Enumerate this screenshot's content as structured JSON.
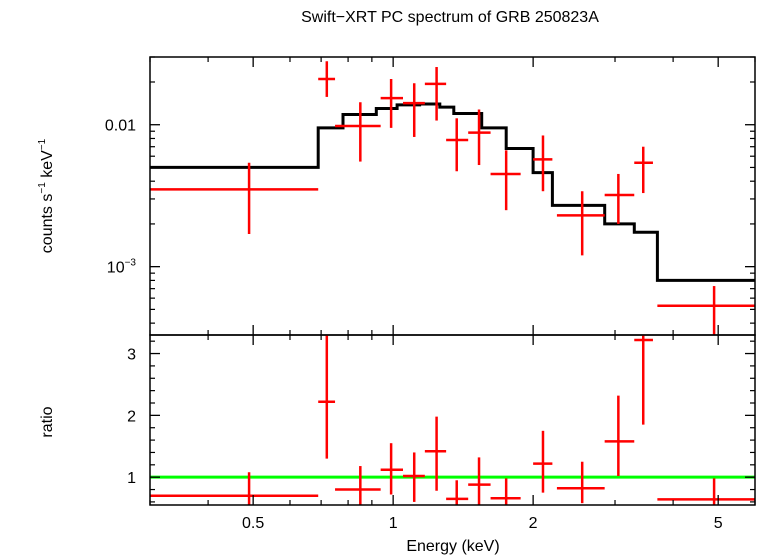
{
  "chart_data": [
    {
      "type": "scatter",
      "title": "Swift−XRT PC spectrum of GRB 250823A",
      "ylabel_main": "counts s",
      "ylabel_exp1": "−1",
      "ylabel_mid": " keV",
      "ylabel_exp2": "−1",
      "xscale": "log",
      "yscale": "log",
      "xlim": [
        0.3,
        6.0
      ],
      "ylim": [
        0.00033,
        0.03
      ],
      "yticks": [
        {
          "base": "0.01",
          "exp": ""
        },
        {
          "base": "10",
          "exp": "−3"
        }
      ],
      "data_points": [
        {
          "x": 0.49,
          "xlo": 0.3,
          "xhi": 0.69,
          "y": 0.0035,
          "ylo": 0.0017,
          "yhi": 0.0054
        },
        {
          "x": 0.72,
          "xlo": 0.69,
          "xhi": 0.75,
          "y": 0.021,
          "ylo": 0.0157,
          "yhi": 0.028
        },
        {
          "x": 0.85,
          "xlo": 0.75,
          "xhi": 0.94,
          "y": 0.0098,
          "ylo": 0.0055,
          "yhi": 0.0144
        },
        {
          "x": 0.99,
          "xlo": 0.94,
          "xhi": 1.05,
          "y": 0.0154,
          "ylo": 0.0095,
          "yhi": 0.021
        },
        {
          "x": 1.11,
          "xlo": 1.05,
          "xhi": 1.17,
          "y": 0.0142,
          "ylo": 0.0082,
          "yhi": 0.0196
        },
        {
          "x": 1.24,
          "xlo": 1.17,
          "xhi": 1.3,
          "y": 0.0194,
          "ylo": 0.0107,
          "yhi": 0.0255
        },
        {
          "x": 1.37,
          "xlo": 1.3,
          "xhi": 1.45,
          "y": 0.0078,
          "ylo": 0.0047,
          "yhi": 0.0111
        },
        {
          "x": 1.53,
          "xlo": 1.45,
          "xhi": 1.62,
          "y": 0.0088,
          "ylo": 0.0052,
          "yhi": 0.0128
        },
        {
          "x": 1.75,
          "xlo": 1.62,
          "xhi": 1.88,
          "y": 0.0045,
          "ylo": 0.0025,
          "yhi": 0.0066
        },
        {
          "x": 2.1,
          "xlo": 2.0,
          "xhi": 2.2,
          "y": 0.0057,
          "ylo": 0.0034,
          "yhi": 0.0084
        },
        {
          "x": 2.55,
          "xlo": 2.25,
          "xhi": 2.85,
          "y": 0.0023,
          "ylo": 0.0012,
          "yhi": 0.0034
        },
        {
          "x": 3.05,
          "xlo": 2.85,
          "xhi": 3.3,
          "y": 0.0032,
          "ylo": 0.002,
          "yhi": 0.0045
        },
        {
          "x": 3.45,
          "xlo": 3.3,
          "xhi": 3.62,
          "y": 0.0054,
          "ylo": 0.0033,
          "yhi": 0.007
        },
        {
          "x": 4.9,
          "xlo": 3.7,
          "xhi": 6.0,
          "y": 0.00053,
          "ylo": 0.00033,
          "yhi": 0.00073
        }
      ],
      "model_steps": [
        {
          "xlo": 0.3,
          "xhi": 0.69,
          "y": 0.005
        },
        {
          "xlo": 0.69,
          "xhi": 0.78,
          "y": 0.0095
        },
        {
          "xlo": 0.78,
          "xhi": 0.92,
          "y": 0.0118
        },
        {
          "xlo": 0.92,
          "xhi": 1.02,
          "y": 0.013
        },
        {
          "xlo": 1.02,
          "xhi": 1.14,
          "y": 0.0138
        },
        {
          "xlo": 1.14,
          "xhi": 1.26,
          "y": 0.014
        },
        {
          "xlo": 1.26,
          "xhi": 1.35,
          "y": 0.0133
        },
        {
          "xlo": 1.35,
          "xhi": 1.55,
          "y": 0.012
        },
        {
          "xlo": 1.55,
          "xhi": 1.75,
          "y": 0.0095
        },
        {
          "xlo": 1.75,
          "xhi": 2.0,
          "y": 0.0068
        },
        {
          "xlo": 2.0,
          "xhi": 2.2,
          "y": 0.0046
        },
        {
          "xlo": 2.2,
          "xhi": 2.85,
          "y": 0.0027
        },
        {
          "xlo": 2.85,
          "xhi": 3.3,
          "y": 0.002
        },
        {
          "xlo": 3.3,
          "xhi": 3.7,
          "y": 0.00175
        },
        {
          "xlo": 3.7,
          "xhi": 6.0,
          "y": 0.0008
        }
      ],
      "colors": {
        "data": "#ff0000",
        "model": "#000000"
      }
    },
    {
      "type": "scatter",
      "xlabel": "Energy (keV)",
      "ylabel": "ratio",
      "xscale": "log",
      "yscale": "linear",
      "xlim": [
        0.3,
        6.0
      ],
      "ylim": [
        0.55,
        3.3
      ],
      "xticks": [
        "0.5",
        "1",
        "2",
        "5"
      ],
      "xtick_values": [
        0.5,
        1,
        2,
        5
      ],
      "yticks": [
        "1",
        "2",
        "3"
      ],
      "ytick_values": [
        1,
        2,
        3
      ],
      "reference_line": 1.0,
      "data_points": [
        {
          "x": 0.49,
          "xlo": 0.3,
          "xhi": 0.69,
          "y": 0.7,
          "ylo": 0.55,
          "yhi": 1.08
        },
        {
          "x": 0.72,
          "xlo": 0.69,
          "xhi": 0.75,
          "y": 2.22,
          "ylo": 1.3,
          "yhi": 3.3
        },
        {
          "x": 0.85,
          "xlo": 0.75,
          "xhi": 0.94,
          "y": 0.8,
          "ylo": 0.55,
          "yhi": 1.18
        },
        {
          "x": 0.99,
          "xlo": 0.94,
          "xhi": 1.05,
          "y": 1.12,
          "ylo": 0.72,
          "yhi": 1.55
        },
        {
          "x": 1.11,
          "xlo": 1.05,
          "xhi": 1.17,
          "y": 1.02,
          "ylo": 0.6,
          "yhi": 1.4
        },
        {
          "x": 1.24,
          "xlo": 1.17,
          "xhi": 1.3,
          "y": 1.42,
          "ylo": 0.78,
          "yhi": 1.98
        },
        {
          "x": 1.37,
          "xlo": 1.3,
          "xhi": 1.45,
          "y": 0.65,
          "ylo": 0.55,
          "yhi": 0.95
        },
        {
          "x": 1.53,
          "xlo": 1.45,
          "xhi": 1.62,
          "y": 0.88,
          "ylo": 0.55,
          "yhi": 1.32
        },
        {
          "x": 1.75,
          "xlo": 1.62,
          "xhi": 1.88,
          "y": 0.66,
          "ylo": 0.55,
          "yhi": 0.98
        },
        {
          "x": 2.1,
          "xlo": 2.0,
          "xhi": 2.2,
          "y": 1.22,
          "ylo": 0.75,
          "yhi": 1.75
        },
        {
          "x": 2.55,
          "xlo": 2.25,
          "xhi": 2.85,
          "y": 0.82,
          "ylo": 0.58,
          "yhi": 1.25
        },
        {
          "x": 3.05,
          "xlo": 2.85,
          "xhi": 3.3,
          "y": 1.58,
          "ylo": 1.02,
          "yhi": 2.32
        },
        {
          "x": 3.45,
          "xlo": 3.3,
          "xhi": 3.62,
          "y": 3.22,
          "ylo": 1.85,
          "yhi": 3.3
        },
        {
          "x": 4.9,
          "xlo": 3.7,
          "xhi": 6.0,
          "y": 0.64,
          "ylo": 0.55,
          "yhi": 0.98
        }
      ],
      "colors": {
        "data": "#ff0000",
        "reference": "#00ff00"
      }
    }
  ]
}
